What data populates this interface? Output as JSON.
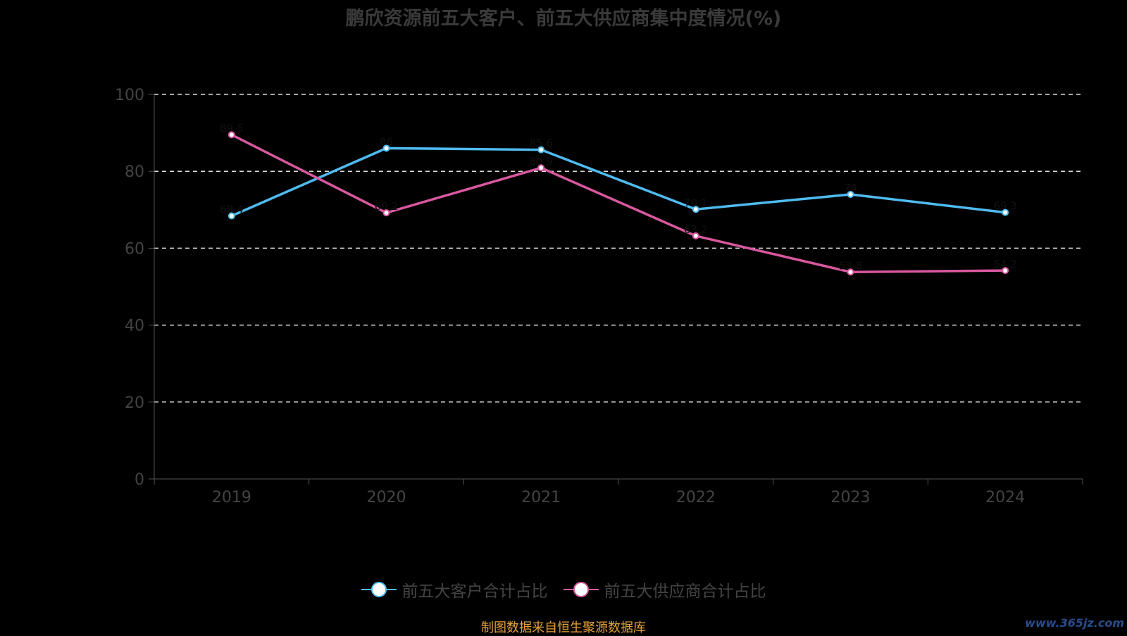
{
  "chart_data": {
    "type": "line",
    "title": "鹏欣资源前五大客户、前五大供应商集中度情况(%)",
    "categories": [
      "2019",
      "2020",
      "2021",
      "2022",
      "2023",
      "2024"
    ],
    "ylim": [
      0,
      100
    ],
    "yticks": [
      0,
      20,
      40,
      60,
      80,
      100
    ],
    "grid": true,
    "legend_position": "bottom",
    "series": [
      {
        "name": "前五大客户合计占比",
        "color": "#4fbbf0",
        "values": [
          68.4,
          86.0,
          85.6,
          70.1,
          74.0,
          69.3
        ]
      },
      {
        "name": "前五大供应商合计占比",
        "color": "#d9589f",
        "values": [
          89.5,
          69.2,
          80.9,
          63.2,
          53.8,
          54.2
        ]
      }
    ]
  },
  "footer": "制图数据来自恒生聚源数据库",
  "watermark": "www.365jz.com"
}
